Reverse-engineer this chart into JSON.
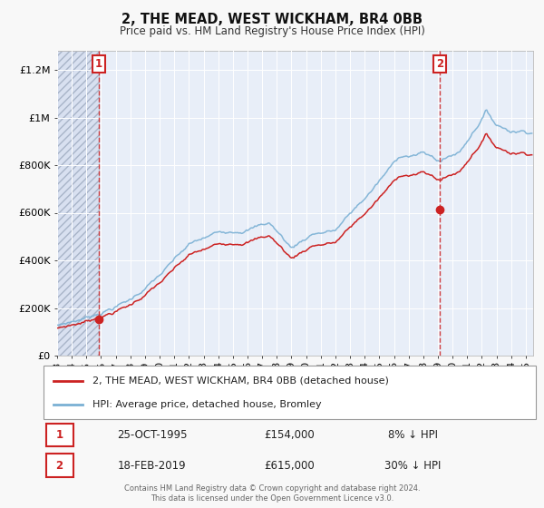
{
  "title": "2, THE MEAD, WEST WICKHAM, BR4 0BB",
  "subtitle": "Price paid vs. HM Land Registry's House Price Index (HPI)",
  "plot_bg_color": "#e8eef8",
  "hatch_bg_color": "#d8e0f0",
  "grid_color": "#ffffff",
  "line_red": "#cc2222",
  "line_blue": "#7ab0d4",
  "legend_entries": [
    "2, THE MEAD, WEST WICKHAM, BR4 0BB (detached house)",
    "HPI: Average price, detached house, Bromley"
  ],
  "ann1_label": "1",
  "ann1_x": 1995.82,
  "ann1_price": 154000,
  "ann1_table_date": "25-OCT-1995",
  "ann1_table_price": "£154,000",
  "ann1_table_pct": "8% ↓ HPI",
  "ann2_label": "2",
  "ann2_x": 2019.12,
  "ann2_price": 615000,
  "ann2_table_date": "18-FEB-2019",
  "ann2_table_price": "£615,000",
  "ann2_table_pct": "30% ↓ HPI",
  "footer_line1": "Contains HM Land Registry data © Crown copyright and database right 2024.",
  "footer_line2": "This data is licensed under the Open Government Licence v3.0.",
  "ylim": [
    0,
    1280000
  ],
  "xlim": [
    1993.0,
    2025.5
  ],
  "yticks": [
    0,
    200000,
    400000,
    600000,
    800000,
    1000000,
    1200000
  ],
  "ytick_labels": [
    "£0",
    "£200K",
    "£400K",
    "£600K",
    "£800K",
    "£1M",
    "£1.2M"
  ]
}
